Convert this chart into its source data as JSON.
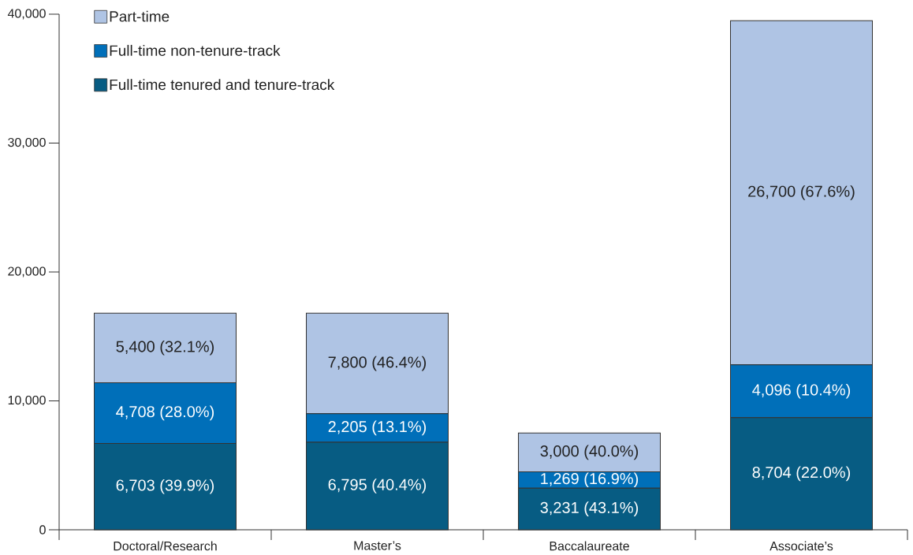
{
  "chart_data": {
    "type": "bar",
    "stacked": true,
    "categories": [
      "Doctoral/Research",
      "Master’s",
      "Baccalaureate",
      "Associate’s"
    ],
    "series": [
      {
        "name": "Full-time tenured and tenure-track",
        "color": "#075c83",
        "values": [
          6703,
          6795,
          3231,
          8704
        ],
        "value_labels": [
          "6,703 (39.9%)",
          "6,795 (40.4%)",
          "3,231 (43.1%)",
          "8,704 (22.0%)"
        ]
      },
      {
        "name": "Full-time non-tenure-track",
        "color": "#006fb9",
        "values": [
          4708,
          2205,
          1269,
          4096
        ],
        "value_labels": [
          "4,708 (28.0%)",
          "2,205 (13.1%)",
          "1,269 (16.9%)",
          "4,096 (10.4%)"
        ]
      },
      {
        "name": "Part-time",
        "color": "#afc4e4",
        "values": [
          5400,
          7800,
          3000,
          26700
        ],
        "value_labels": [
          "5,400 (32.1%)",
          "7,800 (46.4%)",
          "3,000 (40.0%)",
          "26,700 (67.6%)"
        ]
      }
    ],
    "ylim": [
      0,
      40000
    ],
    "yticks": [
      0,
      {
        "value": 10000,
        "label": "10,000"
      },
      {
        "value": 20000,
        "label": "20,000"
      },
      {
        "value": 30000,
        "label": "30,000"
      },
      {
        "value": 40000,
        "label": "40,000"
      }
    ],
    "legend": "top left"
  }
}
